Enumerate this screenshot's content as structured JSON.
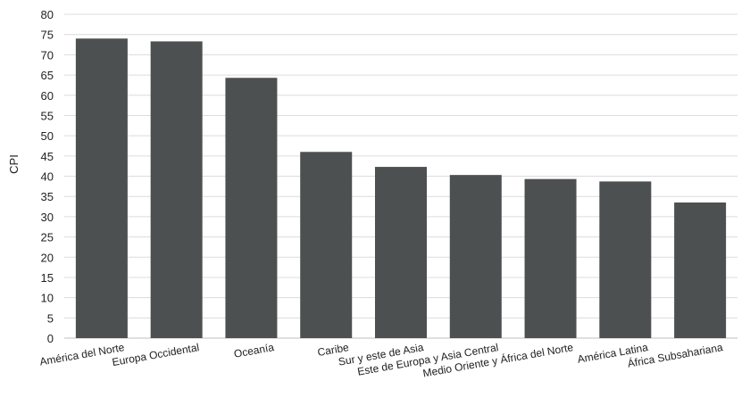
{
  "chart_data": {
    "type": "bar",
    "categories": [
      "América del Norte",
      "Europa Occidental",
      "Oceanía",
      "Caribe",
      "Sur y este de Asia",
      "Este de Europa y Asia Central",
      "Medio Oriente y África del Norte",
      "América Latina",
      "África Subsahariana"
    ],
    "values": [
      74,
      73.3,
      64.3,
      46,
      42.3,
      40.3,
      39.3,
      38.7,
      33.5
    ],
    "xlabel": "",
    "ylabel": "CPI",
    "ylim": [
      0,
      80
    ],
    "yticks": [
      0,
      5,
      10,
      15,
      20,
      25,
      30,
      35,
      40,
      45,
      50,
      55,
      60,
      65,
      70,
      75,
      80
    ],
    "grid": true,
    "bar_color": "#4d5050",
    "grid_color": "#dcdcdc"
  }
}
